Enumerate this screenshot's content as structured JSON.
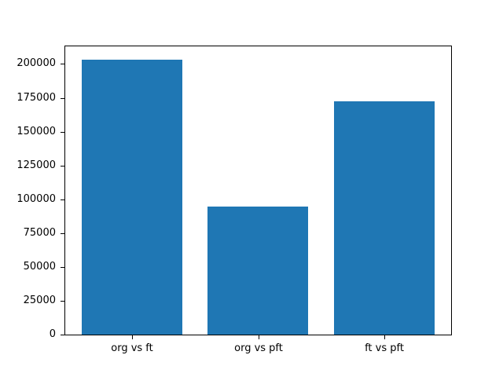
{
  "chart_data": {
    "type": "bar",
    "categories": [
      "org vs ft",
      "org vs pft",
      "ft vs pft"
    ],
    "values": [
      204000,
      95000,
      173000
    ],
    "title": "",
    "xlabel": "",
    "ylabel": "",
    "ylim": [
      0,
      214200
    ],
    "yticks": [
      0,
      25000,
      50000,
      75000,
      100000,
      125000,
      150000,
      175000,
      200000
    ],
    "bar_color": "#1f77b4",
    "bar_width_fraction": 0.8,
    "background": "#ffffff",
    "grid": false,
    "legend": null
  }
}
